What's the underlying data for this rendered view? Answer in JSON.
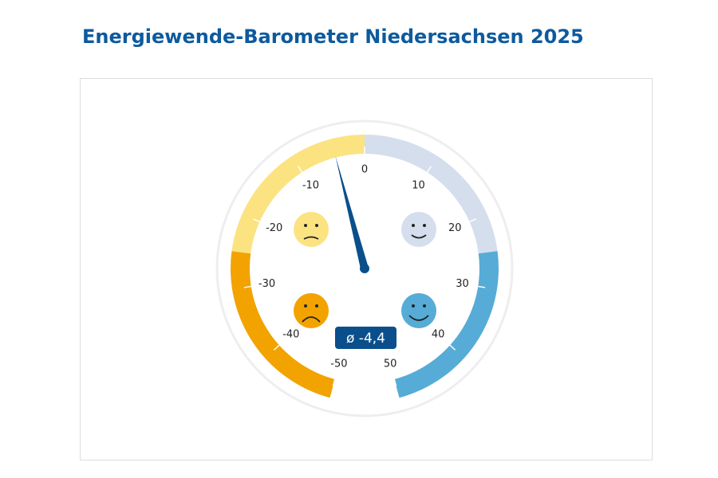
{
  "chart_data": {
    "type": "gauge",
    "title": "Energiewende-Barometer Niedersachsen 2025",
    "value": -4.4,
    "value_label": "ø -4,4",
    "range": [
      -50,
      50
    ],
    "ticks": [
      -50,
      -40,
      -30,
      -20,
      -10,
      0,
      10,
      20,
      30,
      40,
      50
    ],
    "bands": [
      {
        "from": -50,
        "to": -25,
        "color": "#f2a300"
      },
      {
        "from": -25,
        "to": 0,
        "color": "#fce382"
      },
      {
        "from": 0,
        "to": 25,
        "color": "#d5deed"
      },
      {
        "from": 25,
        "to": 50,
        "color": "#56acd6"
      }
    ],
    "needle_color": "#0a4f8c"
  }
}
